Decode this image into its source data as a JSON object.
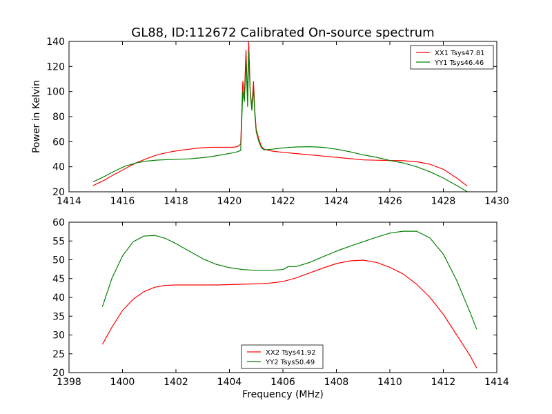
{
  "title": "GL88, ID:112672 Calibrated On-source spectrum",
  "ylabel": "Power in Kelvin",
  "xlabel": "Frequency (MHz)",
  "chart_data": [
    {
      "type": "line",
      "xlim": [
        1414,
        1430
      ],
      "ylim": [
        20,
        140
      ],
      "xticks": [
        1414,
        1416,
        1418,
        1420,
        1422,
        1424,
        1426,
        1428,
        1430
      ],
      "yticks": [
        20,
        40,
        60,
        80,
        100,
        120,
        140
      ],
      "legend_position": "top-right",
      "series": [
        {
          "name": "XX1 Tsys47.81",
          "color": "#ff0000",
          "x": [
            1414.9,
            1415.3,
            1415.7,
            1416.1,
            1416.5,
            1416.9,
            1417.3,
            1417.7,
            1418.1,
            1418.5,
            1418.9,
            1419.3,
            1419.7,
            1420.1,
            1420.3,
            1420.42,
            1420.5,
            1420.56,
            1420.62,
            1420.68,
            1420.72,
            1420.78,
            1420.84,
            1420.9,
            1420.95,
            1421.0,
            1421.1,
            1421.2,
            1421.3,
            1421.6,
            1422.0,
            1422.5,
            1423.0,
            1423.5,
            1424.0,
            1424.5,
            1425.0,
            1425.5,
            1426.0,
            1426.5,
            1427.0,
            1427.5,
            1428.0,
            1428.5,
            1428.9
          ],
          "y": [
            25,
            29,
            34,
            38.5,
            43,
            46.5,
            49.5,
            51.5,
            53,
            54,
            55,
            55.5,
            55.5,
            55.5,
            56,
            58,
            108,
            97,
            133,
            95,
            140,
            100,
            88,
            108,
            85,
            70,
            62,
            56,
            54,
            52.5,
            51.5,
            50.5,
            49.5,
            48.5,
            47.5,
            46.5,
            45.5,
            45.2,
            45,
            44.8,
            44,
            42,
            38,
            31,
            24.5
          ]
        },
        {
          "name": "YY1 Tsys46.46",
          "color": "#008000",
          "x": [
            1414.9,
            1415.3,
            1415.7,
            1416.1,
            1416.5,
            1416.9,
            1417.3,
            1417.7,
            1418.1,
            1418.5,
            1418.9,
            1419.3,
            1419.7,
            1420.1,
            1420.3,
            1420.42,
            1420.5,
            1420.56,
            1420.62,
            1420.68,
            1420.72,
            1420.78,
            1420.84,
            1420.9,
            1420.95,
            1421.0,
            1421.1,
            1421.2,
            1421.3,
            1421.6,
            1422.0,
            1422.5,
            1423.0,
            1423.5,
            1424.0,
            1424.5,
            1425.0,
            1425.5,
            1426.0,
            1426.5,
            1427.0,
            1427.5,
            1428.0,
            1428.5,
            1428.9
          ],
          "y": [
            28,
            32,
            36.5,
            40.5,
            43,
            44.5,
            45.3,
            45.7,
            46,
            46.3,
            47,
            48,
            49.5,
            51,
            52,
            53,
            100,
            92,
            125,
            88,
            132,
            98,
            85,
            102,
            82,
            68,
            60,
            55,
            53.5,
            54,
            55,
            55.8,
            56,
            55.5,
            54,
            52,
            49.5,
            47.5,
            45,
            43,
            40,
            36,
            31,
            25,
            20
          ]
        }
      ]
    },
    {
      "type": "line",
      "xlim": [
        1398,
        1414
      ],
      "ylim": [
        20,
        60
      ],
      "xticks": [
        1398,
        1400,
        1402,
        1404,
        1406,
        1408,
        1410,
        1412,
        1414
      ],
      "yticks": [
        20,
        25,
        30,
        35,
        40,
        45,
        50,
        55,
        60
      ],
      "legend_position": "lower-center",
      "series": [
        {
          "name": "XX2 Tsys41.92",
          "color": "#ff0000",
          "x": [
            1399.25,
            1399.6,
            1400.0,
            1400.4,
            1400.8,
            1401.2,
            1401.6,
            1402.0,
            1402.5,
            1403.0,
            1403.5,
            1404.0,
            1404.5,
            1405.0,
            1405.5,
            1406.0,
            1406.5,
            1407.0,
            1407.5,
            1408.0,
            1408.5,
            1409.0,
            1409.5,
            1410.0,
            1410.5,
            1411.0,
            1411.5,
            1412.0,
            1412.5,
            1413.0,
            1413.25
          ],
          "y": [
            27.5,
            32,
            36.5,
            39.5,
            41.5,
            42.7,
            43.2,
            43.3,
            43.3,
            43.3,
            43.3,
            43.4,
            43.5,
            43.6,
            43.8,
            44.2,
            45.2,
            46.5,
            47.8,
            49.0,
            49.7,
            49.9,
            49.3,
            48.0,
            46.2,
            43.5,
            40.0,
            35.5,
            30.0,
            24.5,
            21.2
          ]
        },
        {
          "name": "YY2 Tsys50.49",
          "color": "#008000",
          "x": [
            1399.25,
            1399.6,
            1400.0,
            1400.4,
            1400.8,
            1401.2,
            1401.6,
            1402.0,
            1402.5,
            1403.0,
            1403.5,
            1404.0,
            1404.5,
            1405.0,
            1405.5,
            1406.0,
            1406.2,
            1406.5,
            1407.0,
            1407.5,
            1408.0,
            1408.5,
            1409.0,
            1409.5,
            1410.0,
            1410.5,
            1411.0,
            1411.5,
            1412.0,
            1412.5,
            1413.0,
            1413.25
          ],
          "y": [
            37.5,
            45,
            51,
            54.8,
            56.3,
            56.5,
            55.7,
            54.3,
            52.3,
            50.3,
            48.8,
            47.9,
            47.4,
            47.2,
            47.2,
            47.4,
            48.2,
            48.2,
            49.3,
            50.8,
            52.3,
            53.6,
            54.8,
            56.0,
            57.1,
            57.6,
            57.6,
            55.8,
            51.5,
            44.5,
            36.0,
            31.5
          ]
        }
      ]
    }
  ]
}
